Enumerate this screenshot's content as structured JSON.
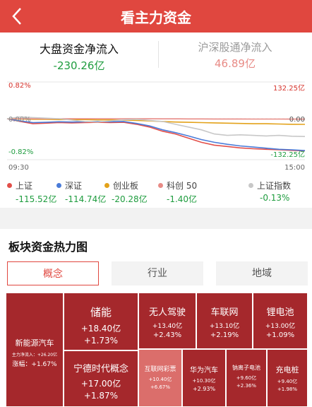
{
  "header": {
    "title": "看主力资金"
  },
  "summary": {
    "left": {
      "title": "大盘资金净流入",
      "value": "-230.26亿"
    },
    "right": {
      "title": "沪深股通净流入",
      "value": "46.89亿"
    }
  },
  "chart_data": {
    "type": "line",
    "x_labels": [
      "09:30",
      "15:00"
    ],
    "left_axis": {
      "top": "0.82%",
      "mid": "0.00%",
      "bottom": "-0.82%",
      "ylim": [
        -0.82,
        0.82
      ]
    },
    "right_axis": {
      "top": "132.25亿",
      "mid": "0.00",
      "bottom": "-132.25亿",
      "ylim": [
        -132.25,
        132.25
      ]
    },
    "series": [
      {
        "name": "上证",
        "color": "#e24f4a",
        "points": [
          0,
          -10,
          -18,
          -16,
          -14,
          -15,
          -14,
          -13,
          -14,
          -13,
          -20,
          -30,
          -45,
          -55,
          -70,
          -85,
          -95,
          -100,
          -105,
          -108,
          -110,
          -112,
          -114,
          -115.52
        ]
      },
      {
        "name": "深证",
        "color": "#4a7bd8",
        "points": [
          0,
          -8,
          -14,
          -13,
          -11,
          -12,
          -11,
          -10,
          -11,
          -10,
          -17,
          -26,
          -40,
          -50,
          -62,
          -75,
          -85,
          -92,
          -98,
          -102,
          -106,
          -110,
          -112,
          -114.74
        ]
      },
      {
        "name": "创业板",
        "color": "#e3a21a",
        "points": [
          0,
          -1,
          -2,
          -2,
          -3,
          -3,
          -3,
          -4,
          -4,
          -5,
          -6,
          -8,
          -10,
          -12,
          -13,
          -14,
          -15,
          -16,
          -17,
          -18,
          -18,
          -19,
          -20,
          -20.28
        ]
      },
      {
        "name": "科创50",
        "color": "#e88b86",
        "points": [
          0,
          0,
          0,
          0,
          0,
          0,
          0,
          0,
          0,
          0,
          -0.2,
          -0.3,
          -0.5,
          -0.6,
          -0.7,
          -0.8,
          -0.9,
          -1.0,
          -1.1,
          -1.2,
          -1.3,
          -1.3,
          -1.4,
          -1.4
        ]
      },
      {
        "name": "上证指数",
        "color": "#c8c8c8",
        "points": [
          0,
          6,
          4,
          2,
          0,
          -5,
          -10,
          -12,
          -8,
          -4,
          -2,
          -6,
          -10,
          -20,
          -30,
          -40,
          -55,
          -60,
          -58,
          -60,
          -62,
          -60,
          -63,
          -64
        ]
      }
    ]
  },
  "legend": [
    {
      "label": "上证",
      "value": "-115.52亿",
      "color": "#e24f4a"
    },
    {
      "label": "深证",
      "value": "-114.74亿",
      "color": "#4a7bd8"
    },
    {
      "label": "创业板",
      "value": "-20.28亿",
      "color": "#e3a21a"
    },
    {
      "label": "科创 50",
      "value": "-1.40亿",
      "color": "#e88b86"
    },
    {
      "label": "上证指数",
      "value": "-0.13%",
      "color": "#c8c8c8"
    }
  ],
  "heatmap": {
    "title": "板块资金热力图",
    "tabs": [
      "概念",
      "行业",
      "地域"
    ],
    "tiles": [
      {
        "name": "新能源汽车",
        "sub1": "主力净流入：+26.20亿",
        "sub2": "涨幅：+1.67%"
      },
      {
        "name": "储能",
        "sub1": "+18.40亿",
        "sub2": "+1.73%"
      },
      {
        "name": "宁德时代概念",
        "sub1": "+17.00亿",
        "sub2": "+1.87%"
      },
      {
        "name": "无人驾驶",
        "sub1": "+13.40亿",
        "sub2": "+2.43%"
      },
      {
        "name": "车联网",
        "sub1": "+13.10亿",
        "sub2": "+2.19%"
      },
      {
        "name": "锂电池",
        "sub1": "+13.00亿",
        "sub2": "+1.09%"
      },
      {
        "name": "互联网彩票",
        "sub1": "+10.40亿",
        "sub2": "+6.67%"
      },
      {
        "name": "华为汽车",
        "sub1": "+10.30亿",
        "sub2": "+2.93%"
      },
      {
        "name": "钠离子电池",
        "sub1": "+9.60亿",
        "sub2": "+2.36%"
      },
      {
        "name": "充电桩",
        "sub1": "+9.40亿",
        "sub2": "+1.98%"
      }
    ]
  }
}
